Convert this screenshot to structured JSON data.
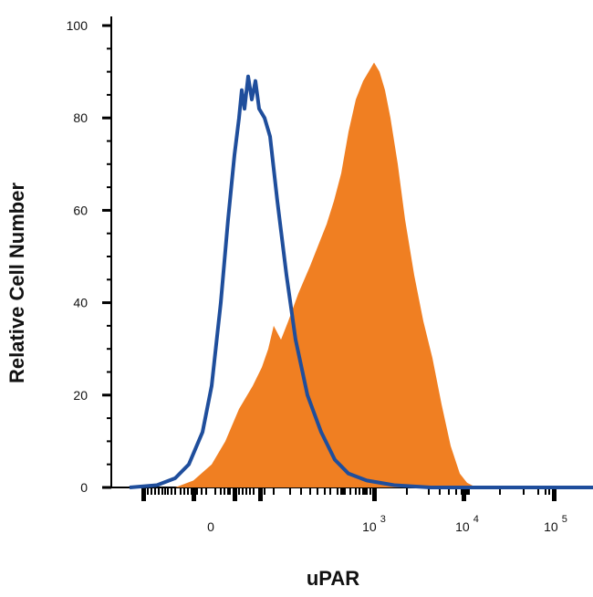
{
  "chart_data": {
    "type": "area",
    "xlabel": "uPAR",
    "ylabel": "Relative Cell Number",
    "ylim": [
      0,
      100
    ],
    "y_ticks": [
      "0",
      "20",
      "40",
      "60",
      "80",
      "100"
    ],
    "x_scale": "biexponential",
    "x_ticks": [
      {
        "base": "0",
        "exp": ""
      },
      {
        "base": "10",
        "exp": "3"
      },
      {
        "base": "10",
        "exp": "4"
      },
      {
        "base": "10",
        "exp": "5"
      }
    ],
    "grid": false,
    "series": [
      {
        "kind": "outline",
        "color": "#1f4e9c",
        "points": [
          [
            -90,
            0
          ],
          [
            -60,
            0.5
          ],
          [
            -40,
            2
          ],
          [
            -25,
            5
          ],
          [
            -10,
            12
          ],
          [
            0,
            22
          ],
          [
            10,
            40
          ],
          [
            18,
            58
          ],
          [
            25,
            72
          ],
          [
            30,
            80
          ],
          [
            33,
            86
          ],
          [
            36,
            82
          ],
          [
            40,
            89
          ],
          [
            44,
            84
          ],
          [
            48,
            88
          ],
          [
            52,
            82
          ],
          [
            58,
            80
          ],
          [
            64,
            76
          ],
          [
            72,
            62
          ],
          [
            82,
            46
          ],
          [
            92,
            32
          ],
          [
            105,
            20
          ],
          [
            120,
            12
          ],
          [
            135,
            6
          ],
          [
            150,
            3
          ],
          [
            170,
            1.5
          ],
          [
            200,
            0.5
          ],
          [
            240,
            0
          ],
          [
            640,
            0
          ]
        ]
      },
      {
        "kind": "filled",
        "color": "#f07f22",
        "points": [
          [
            -90,
            0
          ],
          [
            -40,
            0
          ],
          [
            -20,
            1.5
          ],
          [
            0,
            5
          ],
          [
            15,
            10
          ],
          [
            30,
            17
          ],
          [
            45,
            22
          ],
          [
            55,
            26
          ],
          [
            62,
            30
          ],
          [
            68,
            35
          ],
          [
            76,
            32
          ],
          [
            84,
            36
          ],
          [
            95,
            42
          ],
          [
            108,
            48
          ],
          [
            118,
            53
          ],
          [
            126,
            57
          ],
          [
            134,
            62
          ],
          [
            142,
            68
          ],
          [
            150,
            77
          ],
          [
            158,
            84
          ],
          [
            166,
            88
          ],
          [
            172,
            90
          ],
          [
            178,
            92
          ],
          [
            184,
            90
          ],
          [
            190,
            86
          ],
          [
            196,
            80
          ],
          [
            204,
            70
          ],
          [
            212,
            58
          ],
          [
            222,
            46
          ],
          [
            232,
            36
          ],
          [
            242,
            28
          ],
          [
            252,
            18
          ],
          [
            262,
            9
          ],
          [
            272,
            3
          ],
          [
            280,
            1
          ],
          [
            290,
            0
          ],
          [
            640,
            0
          ]
        ]
      }
    ]
  }
}
